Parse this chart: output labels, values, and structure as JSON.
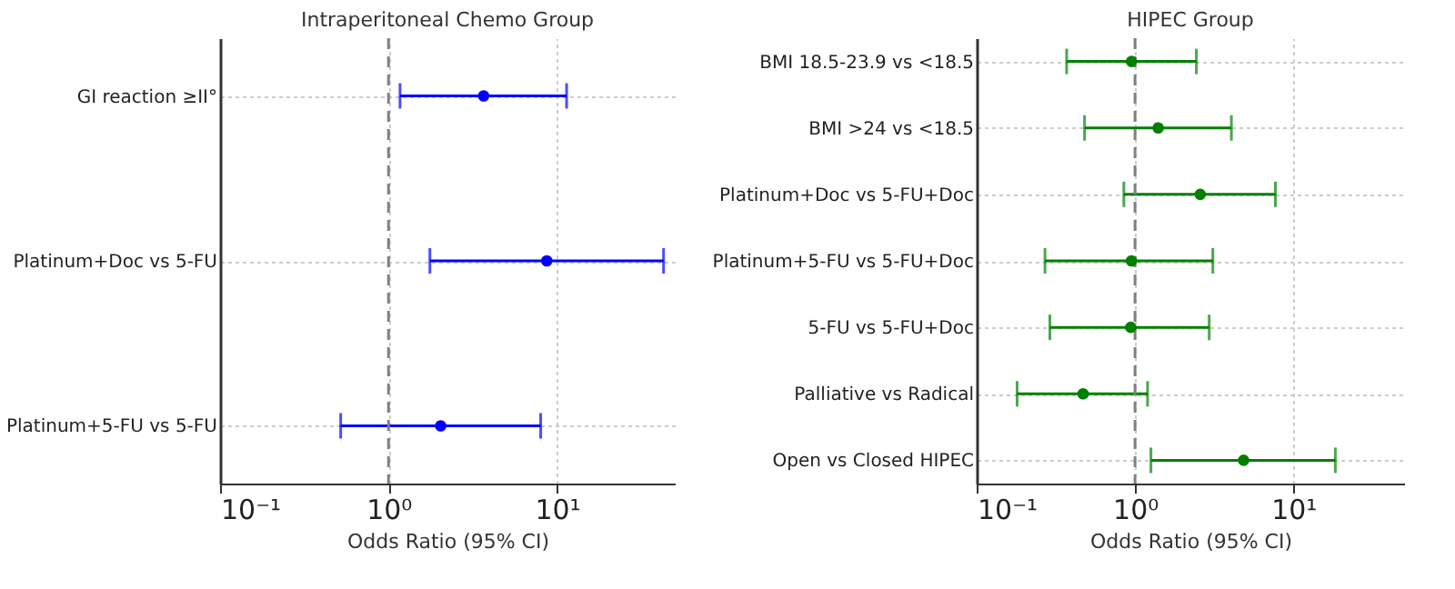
{
  "chart_data": [
    {
      "type": "scatter",
      "orientation": "horizontal",
      "title": "Intraperitoneal Chemo Group",
      "xlabel": "Odds Ratio (95% CI)",
      "log": "x",
      "marker": "circle",
      "grid": true,
      "categories": [
        "GI reaction ≥II°",
        "Platinum+Doc vs 5-FU",
        "Platinum+5-FU vs 5-FU"
      ],
      "series": [
        {
          "color": "#0000ff",
          "values": [
            3.67,
            8.7,
            2.04
          ],
          "errors": [
            [
              1.17,
              11.4
            ],
            [
              1.76,
              42.9
            ],
            [
              0.52,
              8.0
            ]
          ]
        }
      ],
      "xlim": [
        0.1,
        50
      ],
      "xticks": [
        {
          "value": 0.1,
          "label": "10⁻¹"
        },
        {
          "value": 1,
          "label": "10⁰"
        },
        {
          "value": 10,
          "label": "10¹"
        }
      ],
      "ref_lines": [
        {
          "axis": "x",
          "value": 1,
          "color": "#808080",
          "line_style": "dashed"
        }
      ]
    },
    {
      "type": "scatter",
      "orientation": "horizontal",
      "title": "HIPEC Group",
      "xlabel": "Odds Ratio (95% CI)",
      "log": "x",
      "marker": "circle",
      "grid": true,
      "categories": [
        "BMI 18.5-23.9 vs <18.5",
        "BMI >24 vs <18.5",
        "Platinum+Doc vs 5-FU+Doc",
        "Platinum+5-FU vs 5-FU+Doc",
        "5-FU vs 5-FU+Doc",
        "Palliative vs Radical",
        "Open vs Closed HIPEC"
      ],
      "series": [
        {
          "color": "#008000",
          "values": [
            0.95,
            1.4,
            2.58,
            0.95,
            0.94,
            0.47,
            4.85
          ],
          "errors": [
            [
              0.37,
              2.44
            ],
            [
              0.48,
              4.06
            ],
            [
              0.85,
              7.7
            ],
            [
              0.27,
              3.1
            ],
            [
              0.29,
              2.94
            ],
            [
              0.18,
              1.2
            ],
            [
              1.26,
              18.4
            ]
          ]
        }
      ],
      "xlim": [
        0.1,
        50
      ],
      "xticks": [
        {
          "value": 0.1,
          "label": "10⁻¹"
        },
        {
          "value": 1,
          "label": "10⁰"
        },
        {
          "value": 10,
          "label": "10¹"
        }
      ],
      "ref_lines": [
        {
          "axis": "x",
          "value": 1,
          "color": "#808080",
          "line_style": "dashed"
        }
      ]
    }
  ]
}
